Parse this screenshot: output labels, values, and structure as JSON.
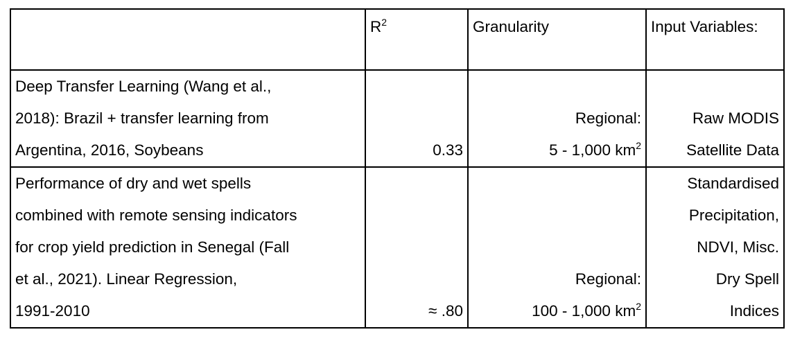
{
  "table": {
    "headers": {
      "description": "",
      "r2_base": "R",
      "r2_sup": "2",
      "granularity": "Granularity",
      "input_variables": "Input Variables:"
    },
    "rows": [
      {
        "description_lines": [
          "Deep Transfer Learning (Wang et al.,",
          "2018): Brazil + transfer learning from",
          "Argentina, 2016, Soybeans"
        ],
        "r2": "0.33",
        "granularity_lines": [
          "Regional:",
          "5 - 1,000 km"
        ],
        "granularity_sup": "2",
        "input_variables_lines": [
          "Raw MODIS",
          "Satellite Data"
        ]
      },
      {
        "description_lines": [
          "Performance of dry and wet spells",
          "combined with remote sensing indicators",
          "for crop yield prediction in Senegal (Fall",
          "et al., 2021). Linear Regression,",
          "1991-2010"
        ],
        "r2": "≈ .80",
        "granularity_lines": [
          "Regional:",
          "100 - 1,000 km"
        ],
        "granularity_sup": "2",
        "input_variables_lines": [
          "Standardised",
          "Precipitation,",
          "NDVI, Misc.",
          "Dry Spell",
          "Indices"
        ]
      }
    ]
  }
}
